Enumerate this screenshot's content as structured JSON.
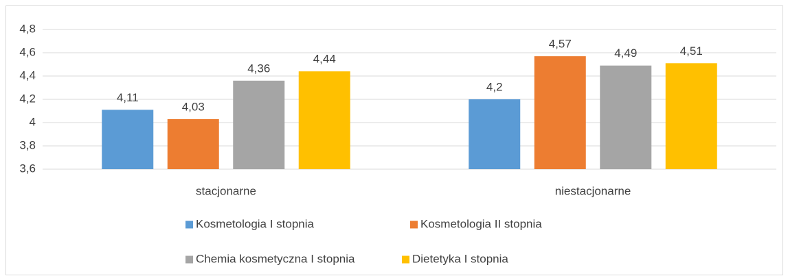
{
  "chart_data": {
    "type": "bar",
    "categories": [
      "stacjonarne",
      "niestacjonarne"
    ],
    "series": [
      {
        "name": "Kosmetologia I stopnia",
        "color": "#5b9bd5",
        "values": [
          4.11,
          4.2
        ],
        "value_labels": [
          "4,11",
          "4,2"
        ]
      },
      {
        "name": "Kosmetologia II stopnia",
        "color": "#ed7d31",
        "values": [
          4.03,
          4.57
        ],
        "value_labels": [
          "4,03",
          "4,57"
        ]
      },
      {
        "name": "Chemia kosmetyczna I stopnia",
        "color": "#a5a5a5",
        "values": [
          4.36,
          4.49
        ],
        "value_labels": [
          "4,36",
          "4,49"
        ]
      },
      {
        "name": "Dietetyka I stopnia",
        "color": "#ffc000",
        "values": [
          4.44,
          4.51
        ],
        "value_labels": [
          "4,44",
          "4,51"
        ]
      }
    ],
    "ylim": [
      3.6,
      4.8
    ],
    "yticks": [
      {
        "value": 3.6,
        "label": "3,6"
      },
      {
        "value": 3.8,
        "label": "3,8"
      },
      4,
      {
        "value": 4.2,
        "label": "4,2"
      },
      {
        "value": 4.4,
        "label": "4,4"
      },
      {
        "value": 4.6,
        "label": "4,6"
      },
      {
        "value": 4.8,
        "label": "4,8"
      }
    ],
    "grid": true,
    "legend": "bottom"
  }
}
